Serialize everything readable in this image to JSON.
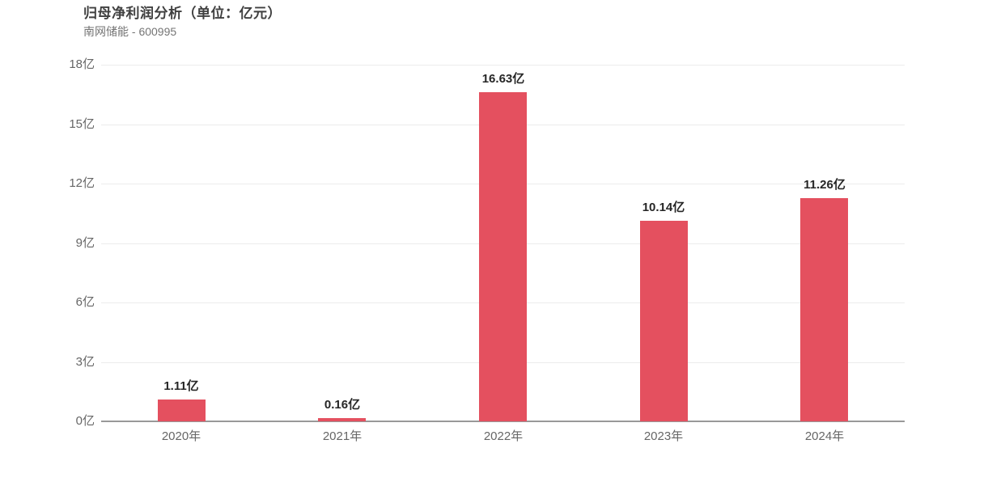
{
  "header": {
    "title": "归母净利润分析（单位：亿元）",
    "subtitle": "南网储能 - 600995"
  },
  "chart_data": {
    "type": "bar",
    "title": "归母净利润分析（单位：亿元）",
    "subtitle": "南网储能 - 600995",
    "categories": [
      "2020年",
      "2021年",
      "2022年",
      "2023年",
      "2024年"
    ],
    "values": [
      1.11,
      0.16,
      16.63,
      10.14,
      11.26
    ],
    "value_labels": [
      "1.11亿",
      "0.16亿",
      "16.63亿",
      "10.14亿",
      "11.26亿"
    ],
    "unit": "亿",
    "xlabel": "",
    "ylabel": "",
    "ylim": [
      0,
      18
    ],
    "yticks": [
      {
        "value": 0,
        "label": "0亿"
      },
      {
        "value": 3,
        "label": "3亿"
      },
      {
        "value": 6,
        "label": "6亿"
      },
      {
        "value": 9,
        "label": "9亿"
      },
      {
        "value": 12,
        "label": "12亿"
      },
      {
        "value": 15,
        "label": "15亿"
      },
      {
        "value": 18,
        "label": "18亿"
      }
    ],
    "grid": true,
    "legend": false
  },
  "colors": {
    "bar": "#e4505f",
    "title_text": "#404040",
    "subtitle_text": "#757575",
    "axis_tick_text": "#666666",
    "value_label_text": "#262626",
    "gridline": "#ececec",
    "axis_line": "#999999",
    "background": "#ffffff"
  }
}
